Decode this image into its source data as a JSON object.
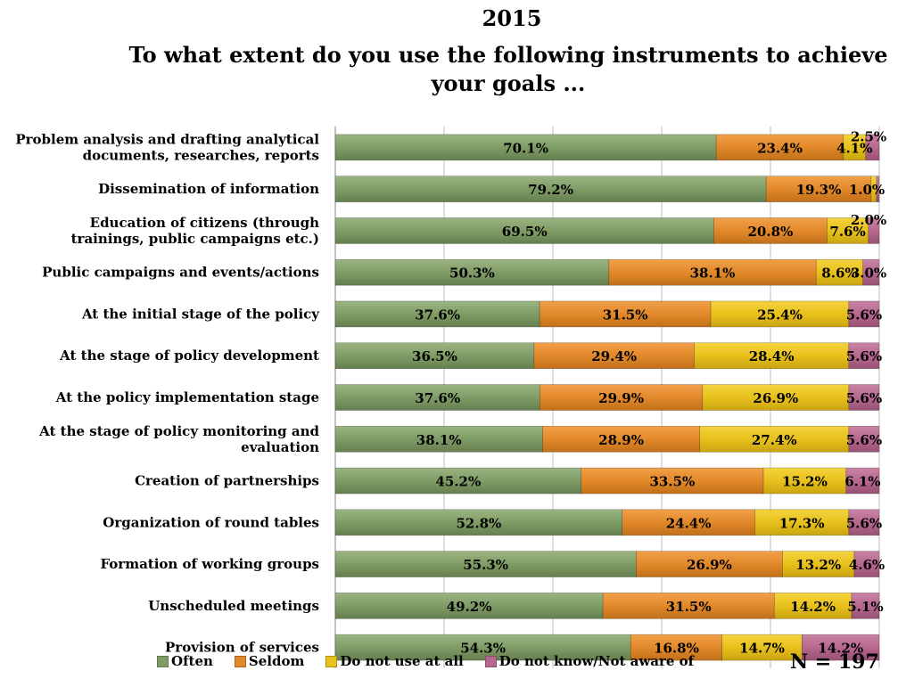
{
  "title_line1": "2015",
  "title_line2": "To what extent do you use the following instruments to achieve your goals  ...",
  "sample_size": "N = 197",
  "colors": {
    "Often": "#7f9c66",
    "Seldom": "#e2892a",
    "Do not use at all": "#e8c11c",
    "Do not know/Not aware of": "#b7688f"
  },
  "chart_data": {
    "type": "bar",
    "orientation": "horizontal",
    "stacked": "percent",
    "title": "2015 To what extent do you use the following instruments to achieve your goals  ...",
    "xlim": [
      0,
      100
    ],
    "grid": true,
    "legend_position": "bottom",
    "categories": [
      "Problem analysis and drafting analytical documents, researches, reports",
      "Dissemination of information",
      "Education of citizens (through trainings, public campaigns etc.)",
      "Public campaigns and events/actions",
      "At the initial stage of the policy",
      "At the stage of policy development",
      "At the  policy implementation stage",
      "At the stage of policy monitoring and evaluation",
      "Creation of partnerships",
      "Organization of round tables",
      "Formation of working groups",
      "Unscheduled meetings",
      "Provision of services"
    ],
    "category_lines": [
      [
        "Problem analysis and drafting analytical",
        "documents, researches, reports"
      ],
      [
        "Dissemination of information"
      ],
      [
        "Education of citizens (through",
        "trainings, public campaigns etc.)"
      ],
      [
        "Public campaigns and events/actions"
      ],
      [
        "At the initial stage of the policy"
      ],
      [
        "At the stage of policy development"
      ],
      [
        "At the  policy implementation stage"
      ],
      [
        "At the stage of policy monitoring and",
        "evaluation"
      ],
      [
        "Creation of partnerships"
      ],
      [
        "Organization of round tables"
      ],
      [
        "Formation of working groups"
      ],
      [
        "Unscheduled meetings"
      ],
      [
        "Provision of services"
      ]
    ],
    "series": [
      {
        "name": "Often",
        "values": [
          70.1,
          79.2,
          69.5,
          50.3,
          37.6,
          36.5,
          37.6,
          38.1,
          45.2,
          52.8,
          55.3,
          49.2,
          54.3
        ]
      },
      {
        "name": "Seldom",
        "values": [
          23.4,
          19.3,
          20.8,
          38.1,
          31.5,
          29.4,
          29.9,
          28.9,
          33.5,
          24.4,
          26.9,
          31.5,
          16.8
        ]
      },
      {
        "name": "Do not use at all",
        "values": [
          4.1,
          1.0,
          7.6,
          8.6,
          25.4,
          28.4,
          26.9,
          27.4,
          15.2,
          17.3,
          13.2,
          14.2,
          14.7
        ]
      },
      {
        "name": "Do not know/Not aware of",
        "values": [
          2.5,
          0.5,
          2.0,
          3.0,
          5.6,
          5.6,
          5.6,
          5.6,
          6.1,
          5.6,
          4.6,
          5.1,
          14.2
        ]
      }
    ],
    "value_labels": [
      [
        "70.1%",
        "23.4%",
        "4.1%",
        "2.5%"
      ],
      [
        "79.2%",
        "19.3%",
        "1.0%",
        ""
      ],
      [
        "69.5%",
        "20.8%",
        "7.6%",
        "2.0%"
      ],
      [
        "50.3%",
        "38.1%",
        "8.6%",
        "3.0%"
      ],
      [
        "37.6%",
        "31.5%",
        "25.4%",
        "5.6%"
      ],
      [
        "36.5%",
        "29.4%",
        "28.4%",
        "5.6%"
      ],
      [
        "37.6%",
        "29.9%",
        "26.9%",
        "5.6%"
      ],
      [
        "38.1%",
        "28.9%",
        "27.4%",
        "5.6%"
      ],
      [
        "45.2%",
        "33.5%",
        "15.2%",
        "6.1%"
      ],
      [
        "52.8%",
        "24.4%",
        "17.3%",
        "5.6%"
      ],
      [
        "55.3%",
        "26.9%",
        "13.2%",
        "4.6%"
      ],
      [
        "49.2%",
        "31.5%",
        "14.2%",
        "5.1%"
      ],
      [
        "54.3%",
        "16.8%",
        "14.7%",
        "14.2%"
      ]
    ]
  }
}
